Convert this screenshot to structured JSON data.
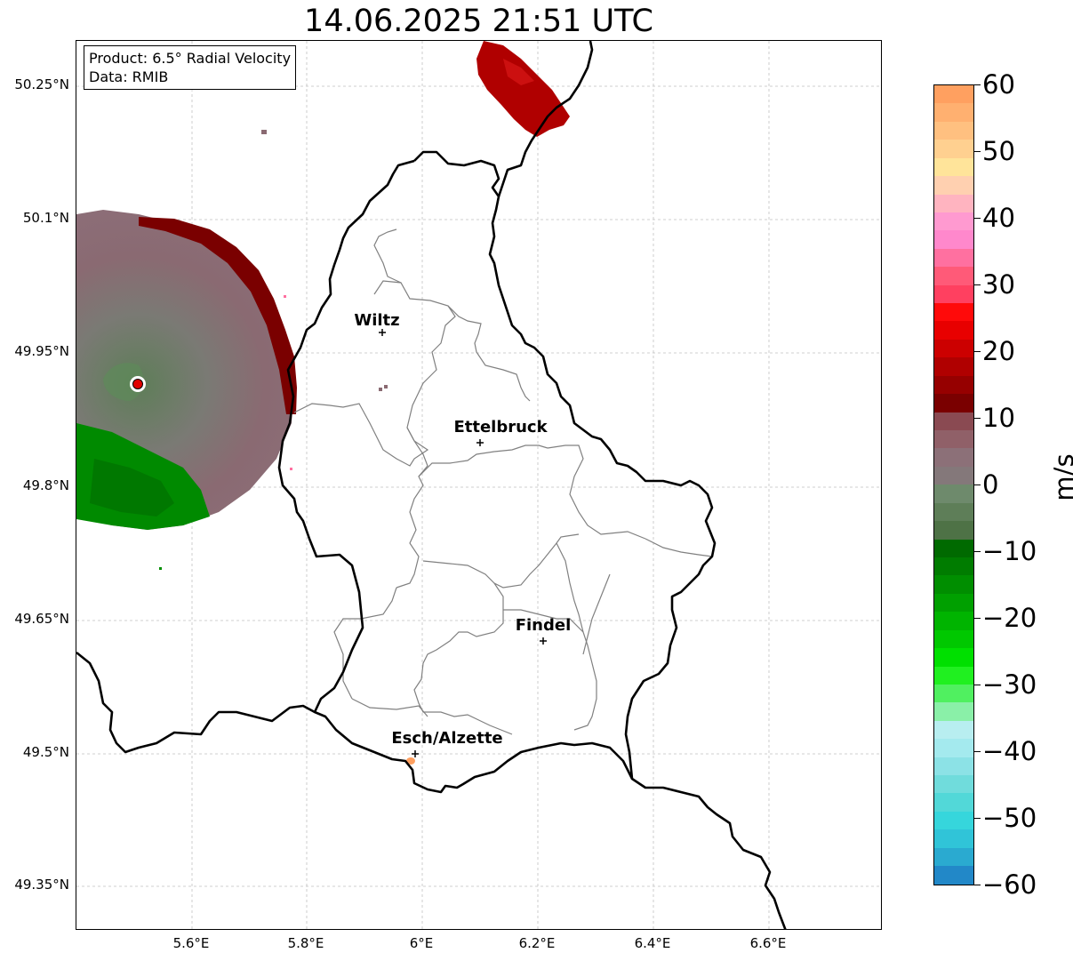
{
  "title": "14.06.2025 21:51 UTC",
  "info": {
    "product": "Product: 6.5° Radial Velocity",
    "data_source": "Data: RMIB"
  },
  "lat_labels": [
    "50.25°N",
    "50.1°N",
    "49.95°N",
    "49.8°N",
    "49.65°N",
    "49.5°N",
    "49.35°N"
  ],
  "lon_labels": [
    "5.6°E",
    "5.8°E",
    "6°E",
    "6.2°E",
    "6.4°E",
    "6.6°E"
  ],
  "cities": [
    {
      "name": "Wiltz"
    },
    {
      "name": "Ettelbruck"
    },
    {
      "name": "Findel"
    },
    {
      "name": "Esch/Alzette"
    }
  ],
  "colorbar": {
    "unit": "m/s",
    "ticks": [
      "60",
      "50",
      "40",
      "30",
      "20",
      "10",
      "0",
      "−10",
      "−20",
      "−30",
      "−40",
      "−50",
      "−60"
    ],
    "range": [
      -60,
      60
    ],
    "colors_top_to_bottom": [
      "#ffa060",
      "#ffb070",
      "#ffc080",
      "#ffd090",
      "#ffe49a",
      "#ffd0b0",
      "#ffb4c0",
      "#ff9ad0",
      "#ff88cc",
      "#ff70a0",
      "#ff5a78",
      "#ff4060",
      "#ff0a0a",
      "#e80000",
      "#cc0000",
      "#b00000",
      "#960000",
      "#7a0000",
      "#8a4a52",
      "#906068",
      "#8c7078",
      "#84787a",
      "#6e8a6c",
      "#5e7e58",
      "#4e7246",
      "#006a00",
      "#007c00",
      "#008e00",
      "#00a000",
      "#00b400",
      "#00c800",
      "#00e000",
      "#20f020",
      "#50f060",
      "#8af0a8",
      "#b8eef0",
      "#a4eaee",
      "#8ce2e6",
      "#70dcdc",
      "#52d8d8",
      "#36d6dc",
      "#30c4d8",
      "#2aaad0",
      "#2288c8"
    ]
  },
  "map_style": {
    "border_color": "#000000",
    "district_color": "#808080",
    "grid_color": "#c0c0c0"
  }
}
